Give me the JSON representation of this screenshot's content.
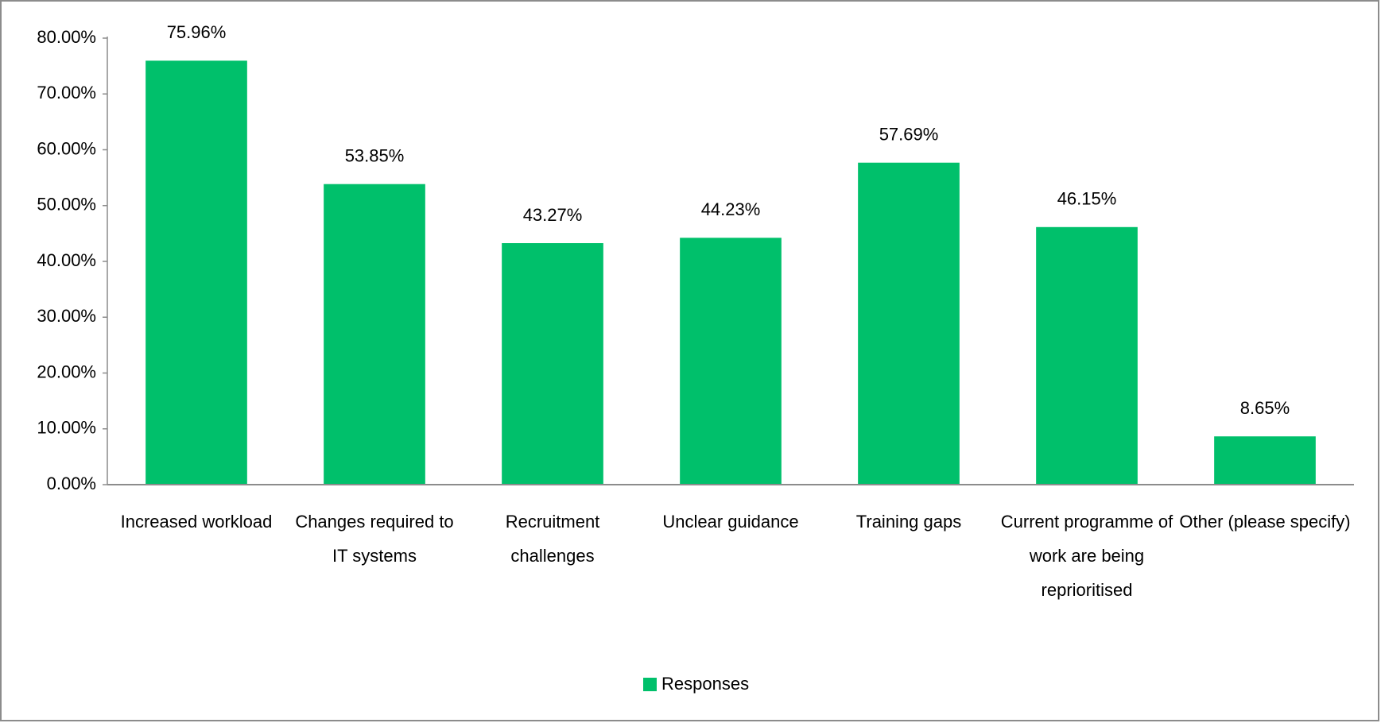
{
  "chart_data": {
    "type": "bar",
    "categories": [
      "Increased workload",
      "Changes required to IT systems",
      "Recruitment challenges",
      "Unclear guidance",
      "Training gaps",
      "Current programme of work are being reprioritised",
      "Other (please specify)"
    ],
    "series": [
      {
        "name": "Responses",
        "color": "#00c06b",
        "values": [
          75.96,
          53.85,
          43.27,
          44.23,
          57.69,
          46.15,
          8.65
        ],
        "value_labels": [
          "75.96%",
          "53.85%",
          "43.27%",
          "44.23%",
          "57.69%",
          "46.15%",
          "8.65%"
        ]
      }
    ],
    "ylim": [
      0,
      80
    ],
    "yticks": [
      {
        "value": 0,
        "label": "0.00%"
      },
      {
        "value": 10,
        "label": "10.00%"
      },
      {
        "value": 20,
        "label": "20.00%"
      },
      {
        "value": 30,
        "label": "30.00%"
      },
      {
        "value": 40,
        "label": "40.00%"
      },
      {
        "value": 50,
        "label": "50.00%"
      },
      {
        "value": 60,
        "label": "60.00%"
      },
      {
        "value": 70,
        "label": "70.00%"
      },
      {
        "value": 80,
        "label": "80.00%"
      }
    ],
    "grid": false,
    "legend": "bottom"
  }
}
